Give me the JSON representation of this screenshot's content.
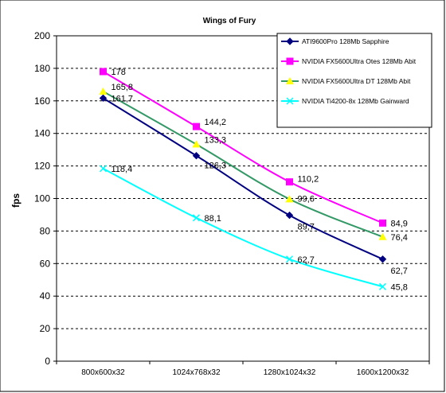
{
  "chart_data": {
    "type": "line",
    "title": "Wings of Fury",
    "xlabel": "",
    "ylabel": "fps",
    "ylim": [
      0,
      200
    ],
    "yticks": [
      0,
      20,
      40,
      60,
      80,
      100,
      120,
      140,
      160,
      180,
      200
    ],
    "categories": [
      "800x600x32",
      "1024x768x32",
      "1280x1024x32",
      "1600x1200x32"
    ],
    "grid": "horizontal-dashed",
    "legend": "top-right",
    "series": [
      {
        "name": "ATI9600Pro 128Mb Sapphire",
        "color": "#000080",
        "marker": "diamond",
        "values": [
          161.7,
          126.3,
          89.7,
          62.7
        ],
        "labels": [
          "161,7",
          "126,3",
          "89,7",
          "62,7"
        ]
      },
      {
        "name": "NVIDIA FX5600Ultra Otes 128Mb Abit",
        "color": "#FF00FF",
        "marker": "square",
        "values": [
          178,
          144.2,
          110.2,
          84.9
        ],
        "labels": [
          "178",
          "144,2",
          "110,2",
          "84,9"
        ]
      },
      {
        "name": "NVIDIA FX5600Ultra DT 128Mb Abit",
        "color": "#339966",
        "marker": "triangle",
        "markerColor": "#FFFF00",
        "values": [
          165.8,
          133.3,
          99.6,
          76.4
        ],
        "labels": [
          "165,8",
          "133,3",
          "99,6",
          "76,4"
        ]
      },
      {
        "name": "NVIDIA Ti4200-8x 128Mb Gainward",
        "color": "#00FFFF",
        "marker": "x",
        "values": [
          118.4,
          88.1,
          62.7,
          45.8
        ],
        "labels": [
          "118,4",
          "88,1",
          "62,7",
          "45,8"
        ]
      }
    ]
  }
}
